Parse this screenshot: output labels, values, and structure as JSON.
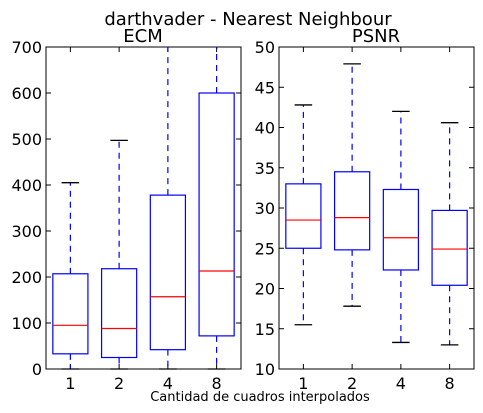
{
  "suptitle": "darthvader - Nearest Neighbour",
  "xlabel": "Cantidad de cuadros interpolados",
  "colors": {
    "box": "#0000ff",
    "median": "#ff0000",
    "whisker": "#0000ff",
    "cap": "#000000",
    "axes": "#000000"
  },
  "chart_data": [
    {
      "type": "box",
      "title": "ECM",
      "categories": [
        "1",
        "2",
        "4",
        "8"
      ],
      "ylim": [
        0,
        700
      ],
      "yticks": [
        0,
        100,
        200,
        300,
        400,
        500,
        600,
        700
      ],
      "boxes": [
        {
          "whislo": 0,
          "q1": 33,
          "med": 95,
          "q3": 207,
          "whishi": 405
        },
        {
          "whislo": 0,
          "q1": 25,
          "med": 88,
          "q3": 218,
          "whishi": 497
        },
        {
          "whislo": 0,
          "q1": 42,
          "med": 157,
          "q3": 378,
          "whishi": 720
        },
        {
          "whislo": 0,
          "q1": 72,
          "med": 213,
          "q3": 600,
          "whishi": 720
        }
      ],
      "grid": false
    },
    {
      "type": "box",
      "title": "PSNR",
      "categories": [
        "1",
        "2",
        "4",
        "8"
      ],
      "ylim": [
        10,
        50
      ],
      "yticks": [
        10,
        15,
        20,
        25,
        30,
        35,
        40,
        45,
        50
      ],
      "boxes": [
        {
          "whislo": 15.5,
          "q1": 25.0,
          "med": 28.5,
          "q3": 33.0,
          "whishi": 42.8
        },
        {
          "whislo": 17.8,
          "q1": 24.8,
          "med": 28.8,
          "q3": 34.5,
          "whishi": 47.9
        },
        {
          "whislo": 13.3,
          "q1": 22.3,
          "med": 26.3,
          "q3": 32.3,
          "whishi": 42.0
        },
        {
          "whislo": 13.0,
          "q1": 20.4,
          "med": 24.9,
          "q3": 29.7,
          "whishi": 40.6
        }
      ],
      "grid": false
    }
  ]
}
